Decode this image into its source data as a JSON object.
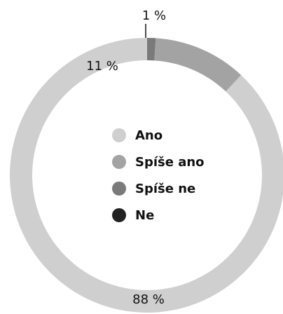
{
  "chart_data": {
    "type": "pie",
    "donut": true,
    "categories": [
      "Ano",
      "Spíše ano",
      "Spíše ne",
      "Ne"
    ],
    "values": [
      88,
      11,
      1,
      0
    ],
    "data_labels": [
      "88 %",
      "11 %",
      "1 %",
      ""
    ],
    "colors": [
      "#cfcfcf",
      "#a3a3a3",
      "#7a7a7a",
      "#222222"
    ],
    "legend": {
      "position": "center",
      "items": [
        {
          "label": "Ano",
          "color": "#cfcfcf"
        },
        {
          "label": "Spíše ano",
          "color": "#a3a3a3"
        },
        {
          "label": "Spíše ne",
          "color": "#7a7a7a"
        },
        {
          "label": "Ne",
          "color": "#222222"
        }
      ]
    }
  }
}
